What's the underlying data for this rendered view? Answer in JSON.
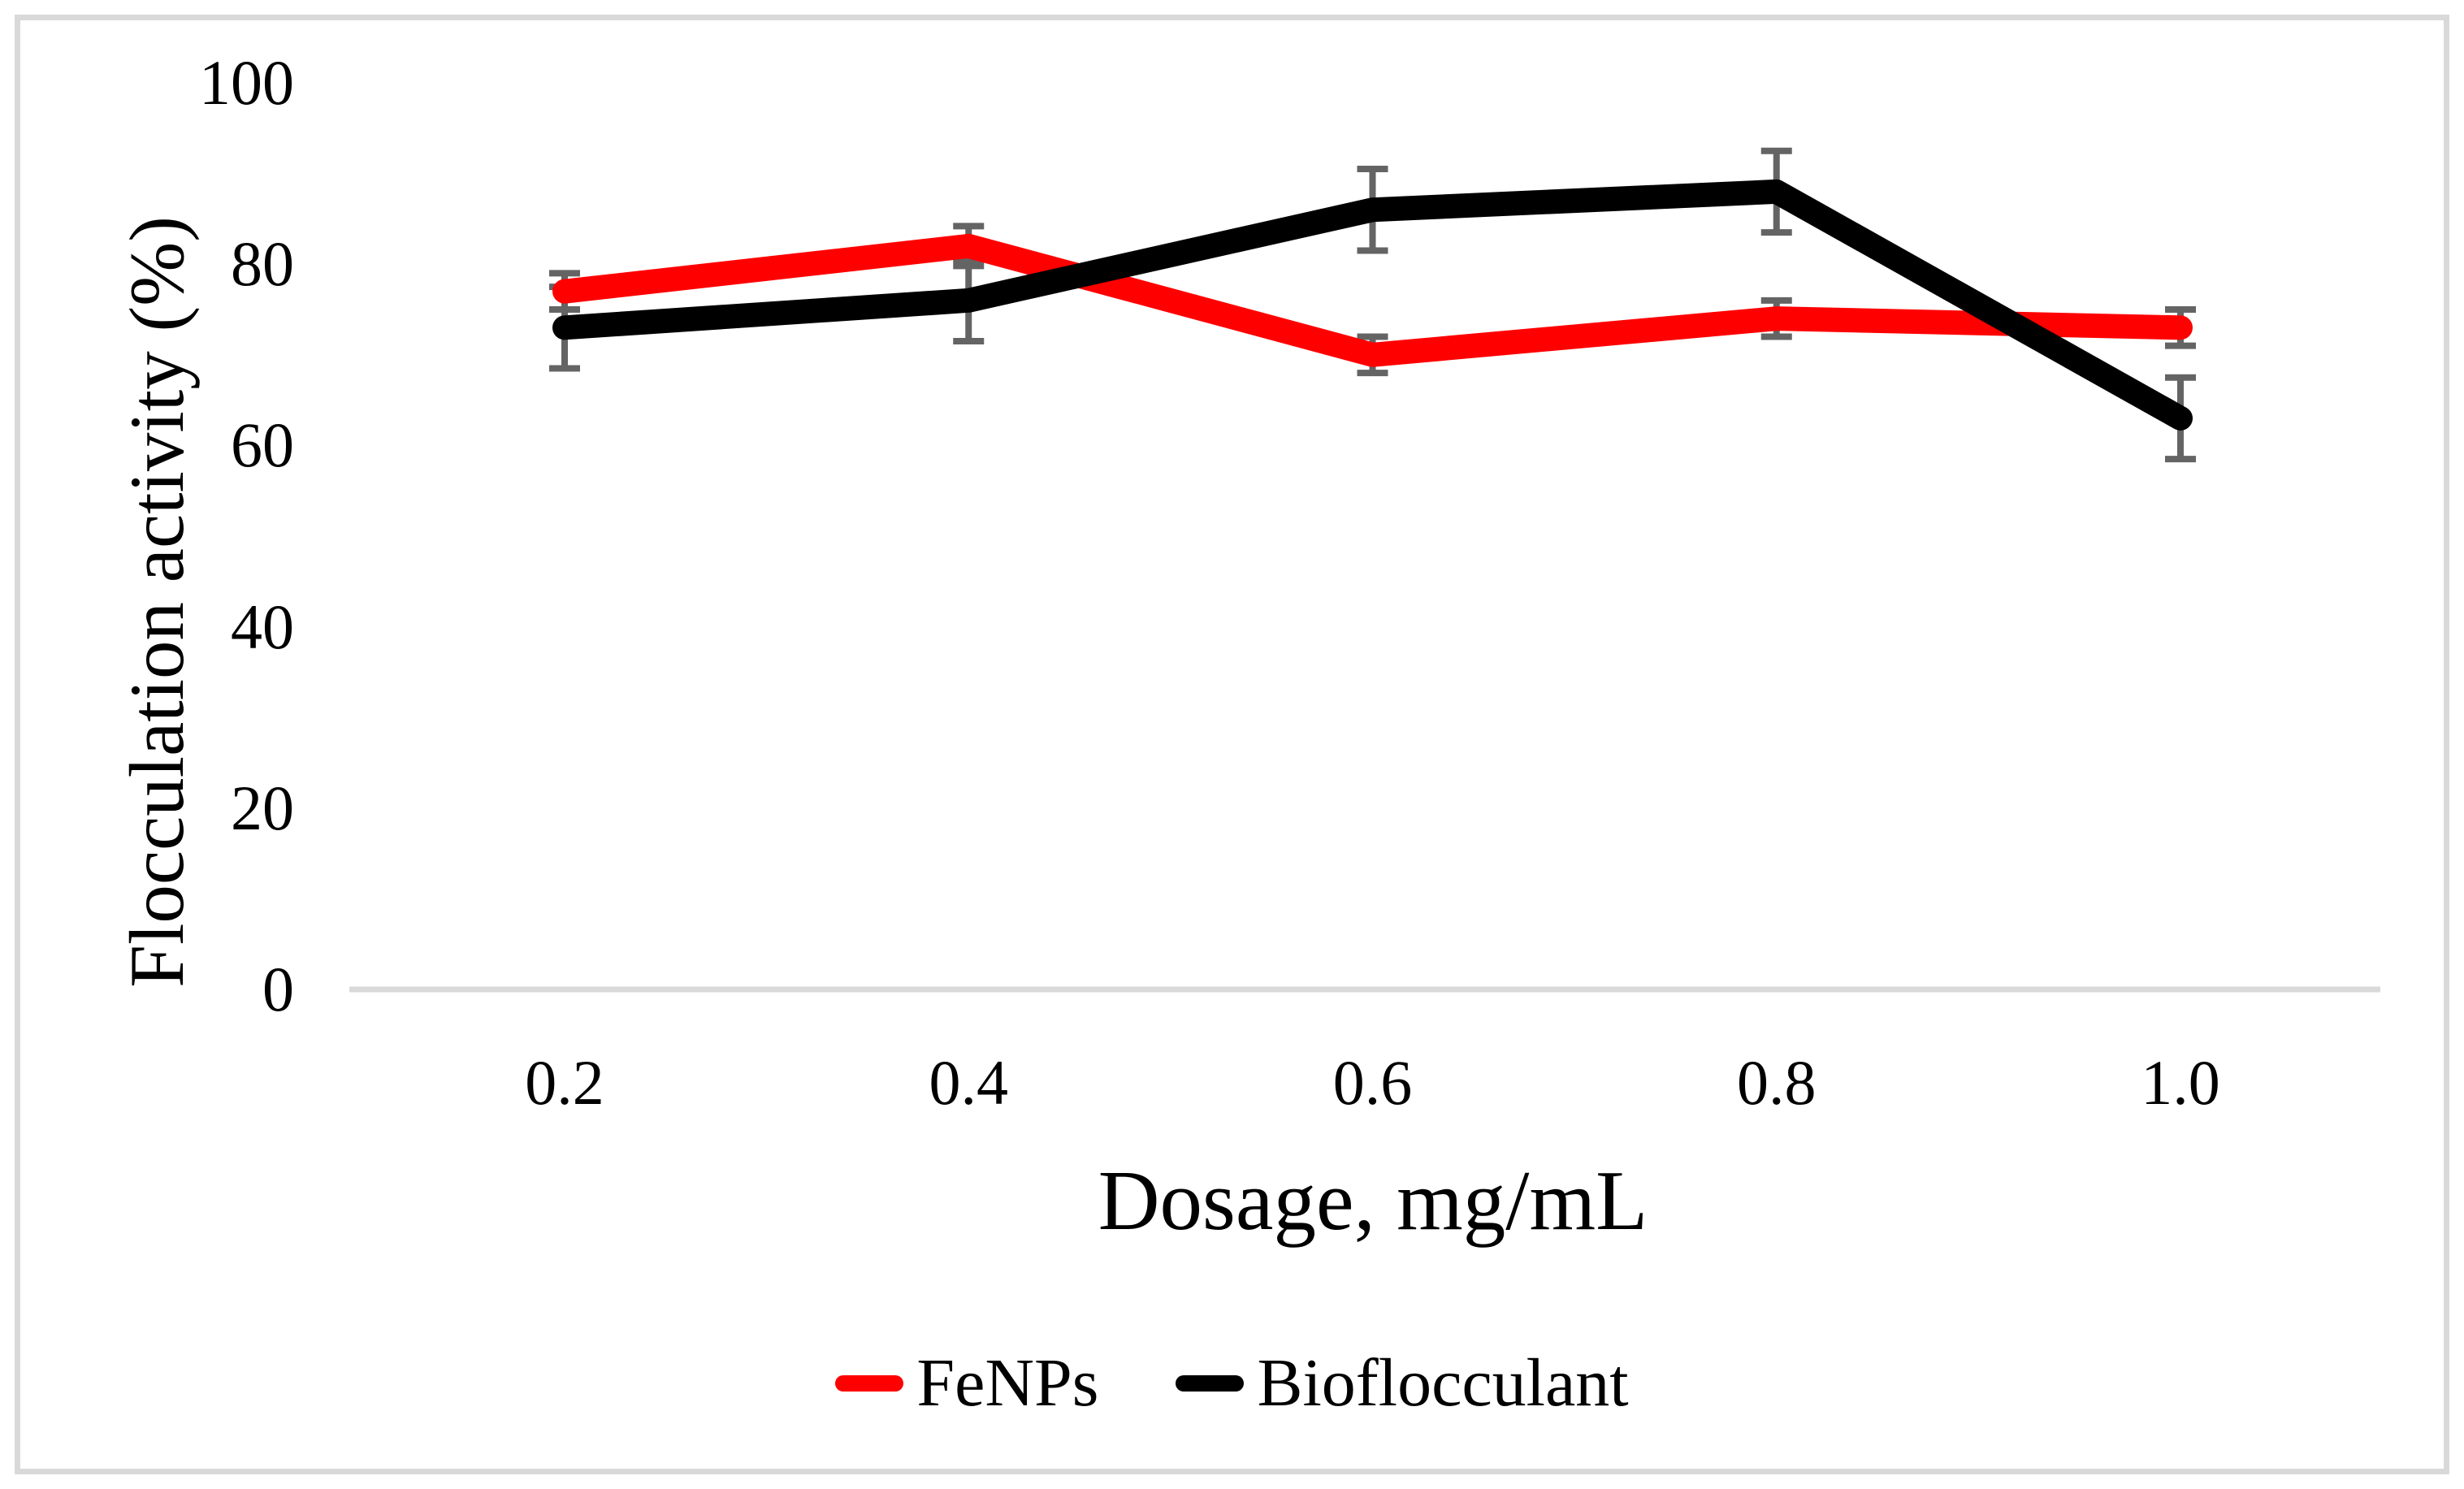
{
  "figure": {
    "y_axis_title": "Flocculation activity (%)",
    "x_axis_title": "Dosage, mg/mL"
  },
  "chart_data": {
    "type": "line",
    "title": "",
    "xlabel": "Dosage, mg/mL",
    "ylabel": "Flocculation activity (%)",
    "categories": [
      "0.2",
      "0.4",
      "0.6",
      "0.8",
      "1.0"
    ],
    "y_ticks": [
      100,
      80,
      60,
      40,
      20,
      0
    ],
    "ylim": [
      0,
      100
    ],
    "grid": false,
    "legend_position": "bottom",
    "series": [
      {
        "name": "FeNPs",
        "color": "#ff0000",
        "values": [
          77,
          82,
          70,
          74,
          73
        ],
        "error": [
          2,
          2.2,
          2,
          2,
          2
        ]
      },
      {
        "name": "Bioflocculant",
        "color": "#000000",
        "values": [
          73,
          76,
          86,
          88,
          63
        ],
        "error": [
          4.5,
          4.5,
          4.5,
          4.5,
          4.5
        ]
      }
    ],
    "error_bar_color": "#646464",
    "axis_line_color": "#d9d9d9"
  }
}
